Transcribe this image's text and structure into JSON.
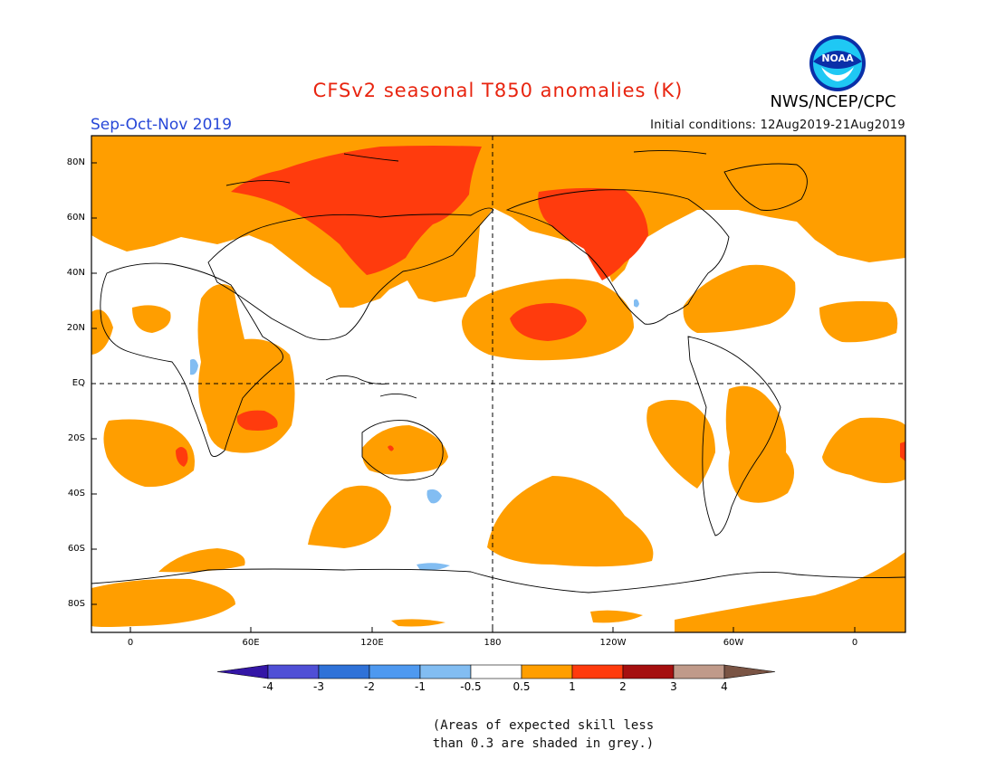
{
  "header": {
    "title": "CFSv2 seasonal T850 anomalies (K)",
    "agency": "NWS/NCEP/CPC",
    "season": "Sep-Oct-Nov 2019",
    "initial_conditions": "Initial conditions: 12Aug2019-21Aug2019",
    "logo_text": "NOAA"
  },
  "axes": {
    "lat_labels": [
      "80N",
      "60N",
      "40N",
      "20N",
      "EQ",
      "20S",
      "40S",
      "60S",
      "80S"
    ],
    "lon_labels": [
      "0",
      "60E",
      "120E",
      "180",
      "120W",
      "60W",
      "0"
    ]
  },
  "colorbar": {
    "labels": [
      "-4",
      "-3",
      "-2",
      "-1",
      "-0.5",
      "0.5",
      "1",
      "2",
      "3",
      "4"
    ],
    "colors": [
      "#3416a6",
      "#4f4fd6",
      "#2f72d8",
      "#4e99f0",
      "#82bdf2",
      "#ffffff",
      "#ff9e00",
      "#ff3b0d",
      "#a50f0f",
      "#c09a8a",
      "#7a5444"
    ]
  },
  "note": {
    "line1": "(Areas of expected skill less",
    "line2": "than 0.3 are shaded in grey.)"
  }
}
